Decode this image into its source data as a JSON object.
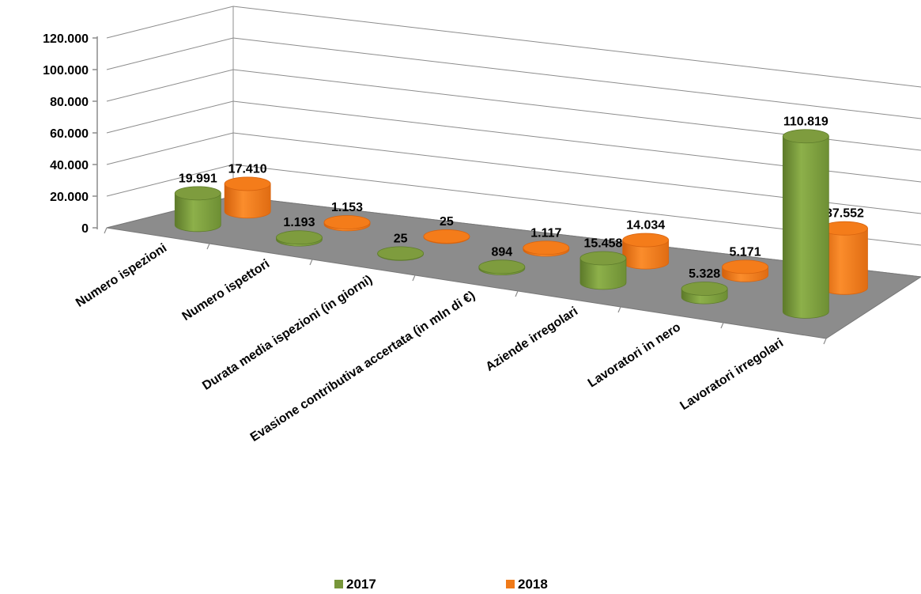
{
  "chart_data": {
    "type": "bar",
    "style": "3d-cylinder",
    "title": "",
    "xlabel": "",
    "ylabel": "",
    "categories": [
      "Numero ispezioni",
      "Numero ispettori",
      "Durata media ispezioni (in giorni)",
      "Evasione  contributiva  accertata (in mln di €)",
      "Aziende irregolari",
      "Lavoratori in nero",
      "Lavoratori irregolari"
    ],
    "series": [
      {
        "name": "2017",
        "color": "#77963A",
        "values": [
          19991,
          1193,
          25,
          894,
          15458,
          5328,
          110819
        ],
        "labels": [
          "19.991",
          "1.193",
          "25",
          "894",
          "15.458",
          "5.328",
          "110.819"
        ]
      },
      {
        "name": "2018",
        "color": "#F07A18",
        "values": [
          17410,
          1153,
          25,
          1117,
          14034,
          5171,
          37552
        ],
        "labels": [
          "17.410",
          "1.153",
          "25",
          "1.117",
          "14.034",
          "5.171",
          "37.552"
        ]
      }
    ],
    "ylim": [
      0,
      120000
    ],
    "yticks": [
      "0",
      "20.000",
      "40.000",
      "60.000",
      "80.000",
      "100.000",
      "120.000"
    ],
    "grid": true,
    "legend_position": "bottom"
  }
}
